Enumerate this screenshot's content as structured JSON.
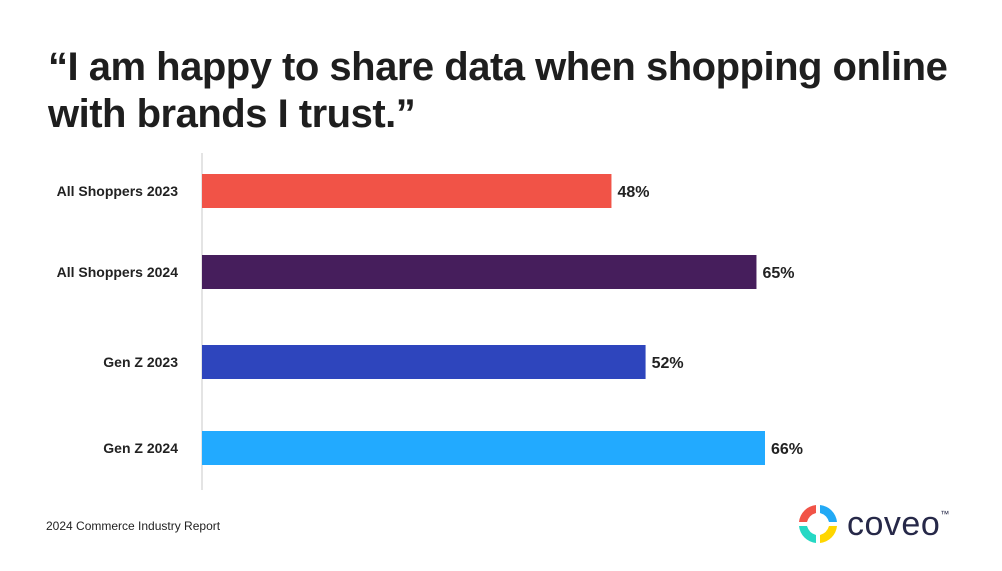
{
  "title": "“I am happy to share data when shopping online with brands I trust.”",
  "footer": "2024 Commerce Industry Report",
  "logo": {
    "text": "coveo",
    "tm": "™",
    "colors": [
      "#f15347",
      "#22a9f5",
      "#25d8c4",
      "#ffd600"
    ]
  },
  "chart_data": {
    "type": "bar",
    "orientation": "horizontal",
    "title": "“I am happy to share data when shopping online with brands I trust.”",
    "categories": [
      "All Shoppers 2023",
      "All Shoppers 2024",
      "Gen Z 2023",
      "Gen Z 2024"
    ],
    "values": [
      48,
      65,
      52,
      66
    ],
    "data_labels": [
      "48%",
      "65%",
      "52%",
      "66%"
    ],
    "colors": [
      "#f15347",
      "#461e5c",
      "#2e45bd",
      "#22aaff"
    ],
    "unit": "%",
    "grid": false
  }
}
